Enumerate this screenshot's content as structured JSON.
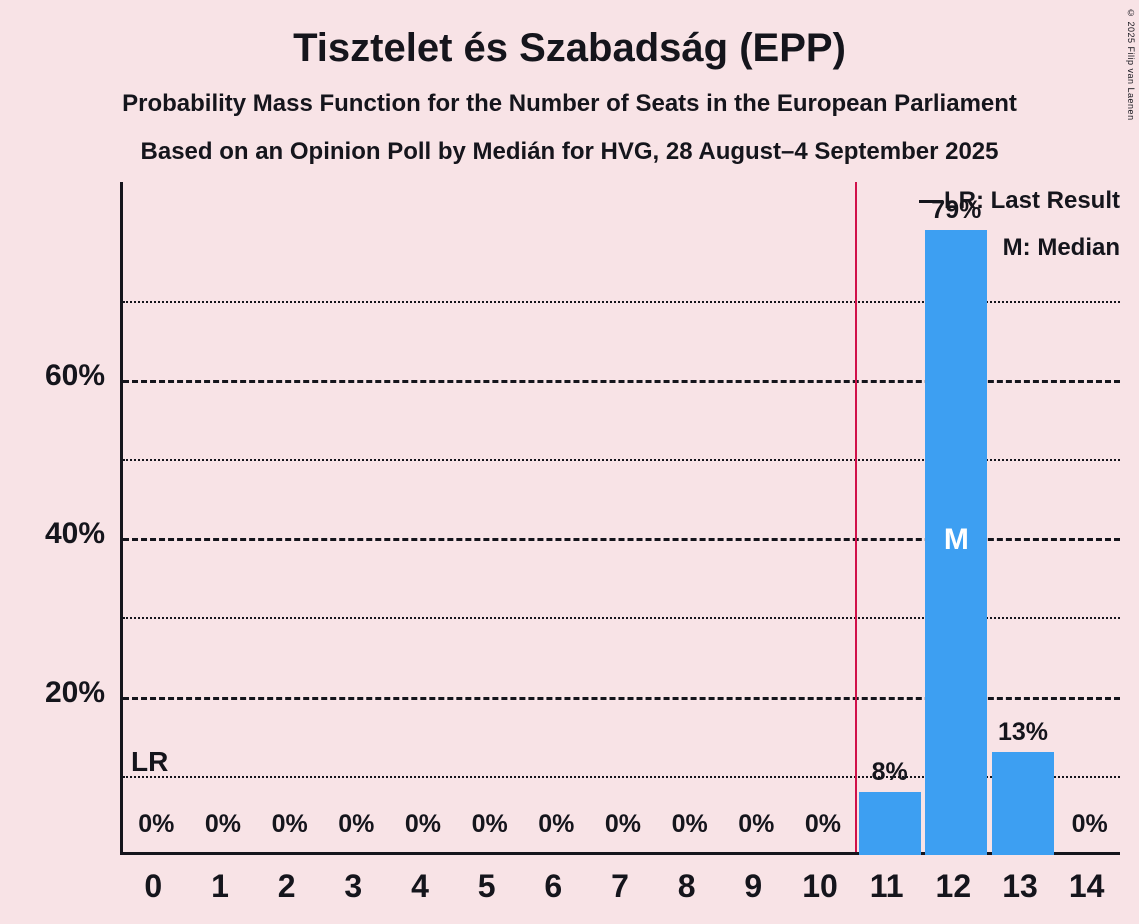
{
  "title": "Tisztelet és Szabadság (EPP)",
  "subtitle1": "Probability Mass Function for the Number of Seats in the European Parliament",
  "subtitle2": "Based on an Opinion Poll by Medián for HVG, 28 August–4 September 2025",
  "copyright": "© 2025 Filip van Laenen",
  "legend": {
    "lr": "LR: Last Result",
    "m": "M: Median"
  },
  "annotations": {
    "lr": "LR",
    "median": "M"
  },
  "colors": {
    "background": "#f8e3e6",
    "bar": "#3d9ff2",
    "last_result_line": "#d0114a",
    "text": "#15151c",
    "axis": "#15151c",
    "median_text": "#ffffff"
  },
  "chart_data": {
    "type": "bar",
    "title": "Tisztelet és Szabadság (EPP)",
    "categories": [
      "0",
      "1",
      "2",
      "3",
      "4",
      "5",
      "6",
      "7",
      "8",
      "9",
      "10",
      "11",
      "12",
      "13",
      "14"
    ],
    "values": [
      0,
      0,
      0,
      0,
      0,
      0,
      0,
      0,
      0,
      0,
      0,
      8,
      79,
      13,
      0
    ],
    "labels": [
      "0%",
      "0%",
      "0%",
      "0%",
      "0%",
      "0%",
      "0%",
      "0%",
      "0%",
      "0%",
      "0%",
      "8%",
      "79%",
      "13%",
      "0%"
    ],
    "ylim": [
      0,
      85
    ],
    "yticks_major": [
      {
        "value": 20,
        "label": "20%"
      },
      {
        "value": 40,
        "label": "40%"
      },
      {
        "value": 60,
        "label": "60%"
      }
    ],
    "yticks_minor": [
      10,
      30,
      50,
      70
    ],
    "last_result": 10.5,
    "median_category": "12",
    "legend_position": "top-right",
    "grid": "horizontal-dashed"
  }
}
